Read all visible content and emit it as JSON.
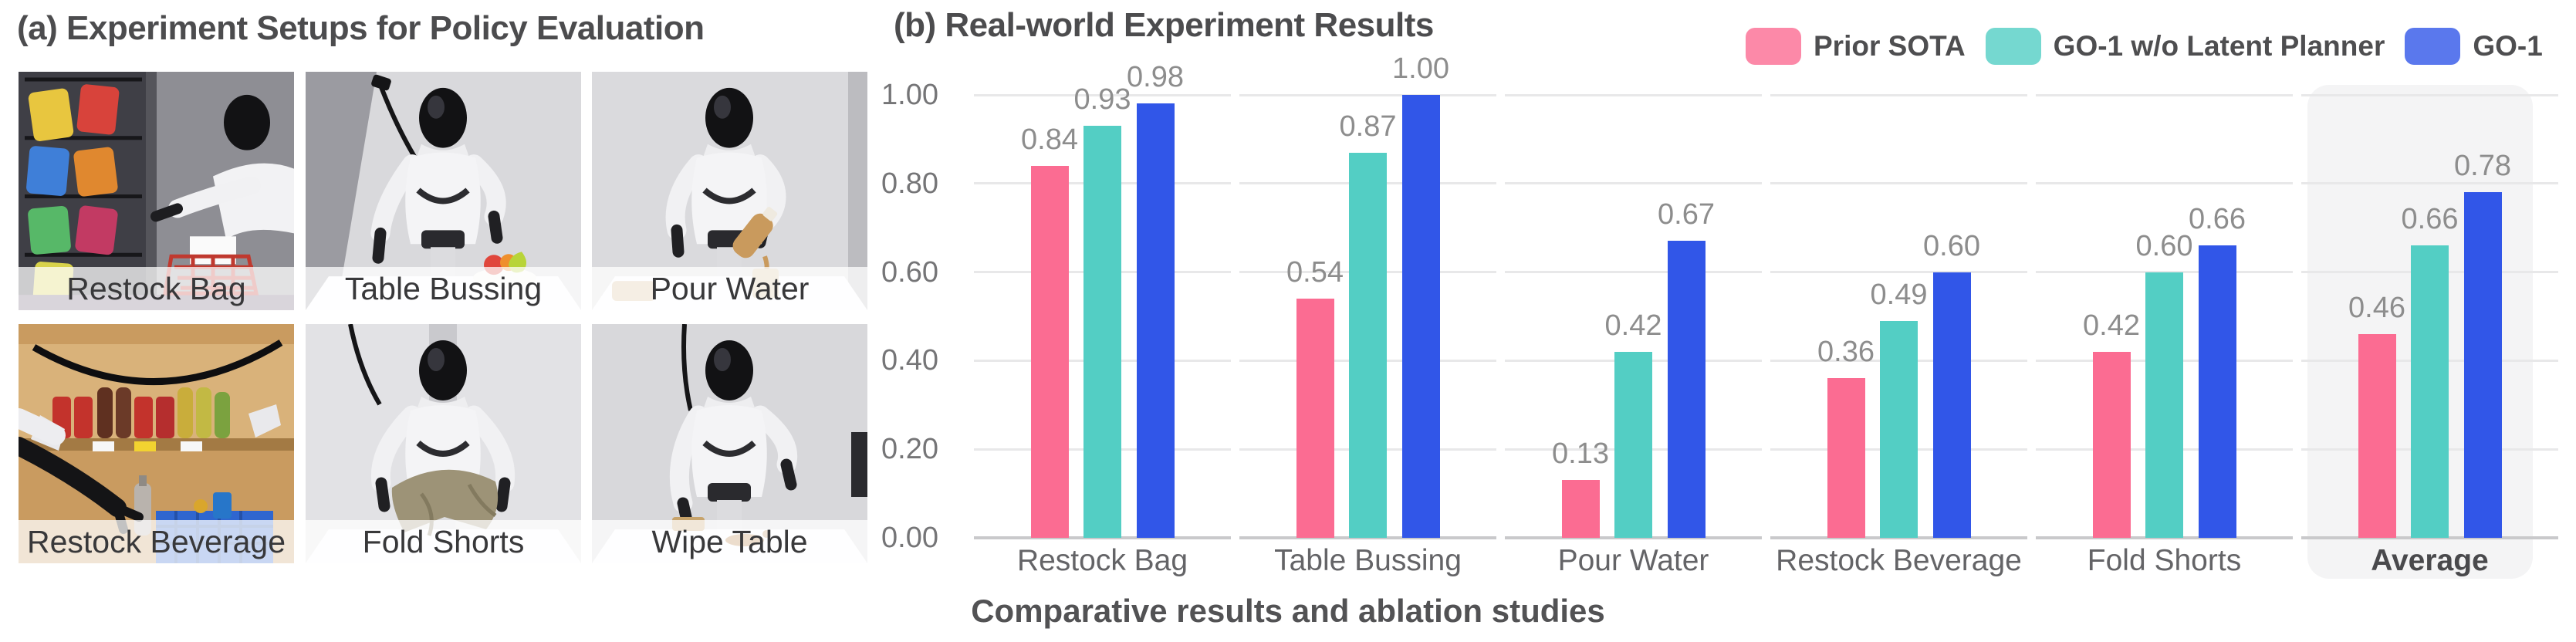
{
  "figure": {
    "panel_a": {
      "title": "(a) Experiment Setups for Policy Evaluation",
      "photos": [
        {
          "label": "Restock Bag",
          "scene": "robot-restocking-snack-shelf-with-cart"
        },
        {
          "label": "Table Bussing",
          "scene": "robot-at-table-with-fruit-bowl"
        },
        {
          "label": "Pour Water",
          "scene": "robot-pouring-bottle-into-glass"
        },
        {
          "label": "Restock Beverage",
          "scene": "robot-arm-placing-bottle-in-crate-at-drink-shelf"
        },
        {
          "label": "Fold Shorts",
          "scene": "robot-folding-khaki-shorts-on-table"
        },
        {
          "label": "Wipe Table",
          "scene": "robot-wiping-spill-on-table"
        }
      ]
    },
    "panel_b": {
      "title": "(b) Real-world Experiment Results",
      "caption": "Comparative results and ablation studies"
    }
  },
  "chart_data": {
    "type": "bar",
    "categories": [
      "Restock Bag",
      "Table Bussing",
      "Pour Water",
      "Restock Beverage",
      "Fold Shorts",
      "Average"
    ],
    "series": [
      {
        "name": "Prior SOTA",
        "color": "#FB6C92",
        "values": [
          0.84,
          0.54,
          0.13,
          0.36,
          0.42,
          0.46
        ]
      },
      {
        "name": "GO-1 w/o Latent Planner",
        "color": "#53CEC4",
        "values": [
          0.93,
          0.87,
          0.42,
          0.49,
          0.6,
          0.66
        ]
      },
      {
        "name": "GO-1",
        "color": "#3156E8",
        "values": [
          0.98,
          1.0,
          0.67,
          0.6,
          0.66,
          0.78
        ]
      }
    ],
    "ylim": [
      0.0,
      1.0
    ],
    "yticks": [
      "0.00",
      "0.20",
      "0.40",
      "0.60",
      "0.80",
      "1.00"
    ],
    "value_label_decimals": 2,
    "grid": true,
    "legend_position": "top-right",
    "highlight_category": "Average",
    "highlight_color": "#f4f4f5",
    "value_labels": true
  }
}
